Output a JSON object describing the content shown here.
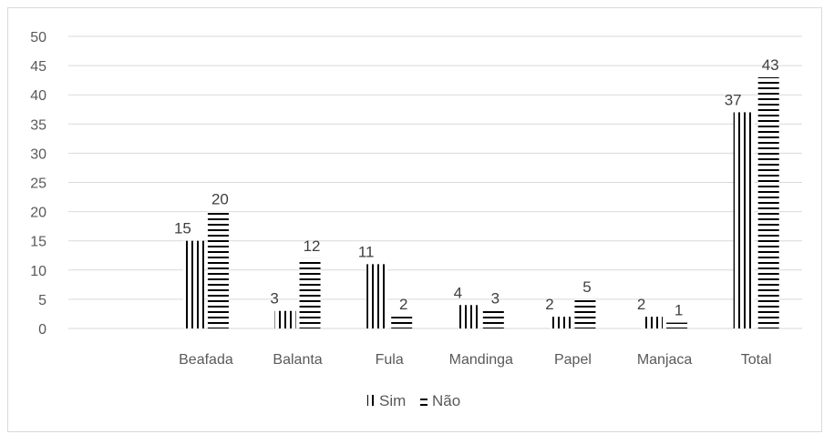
{
  "chart_data": {
    "type": "bar",
    "title": "",
    "xlabel": "",
    "ylabel": "",
    "categories": [
      "",
      "Beafada",
      "Balanta",
      "Fula",
      "Mandinga",
      "Papel",
      "Manjaca",
      "Total"
    ],
    "series": [
      {
        "name": "Sim",
        "values": [
          null,
          15,
          3,
          11,
          4,
          2,
          2,
          37
        ],
        "pattern": "vertical-lines",
        "color": "#000000"
      },
      {
        "name": "Não",
        "values": [
          null,
          20,
          12,
          2,
          3,
          5,
          1,
          43
        ],
        "pattern": "horizontal-lines",
        "color": "#000000"
      }
    ],
    "ylim": [
      0,
      50
    ],
    "yticks": [
      0,
      5,
      10,
      15,
      20,
      25,
      30,
      35,
      40,
      45,
      50
    ],
    "grid": true,
    "legend_position": "bottom",
    "gridline_color": "#d9d9d9"
  }
}
